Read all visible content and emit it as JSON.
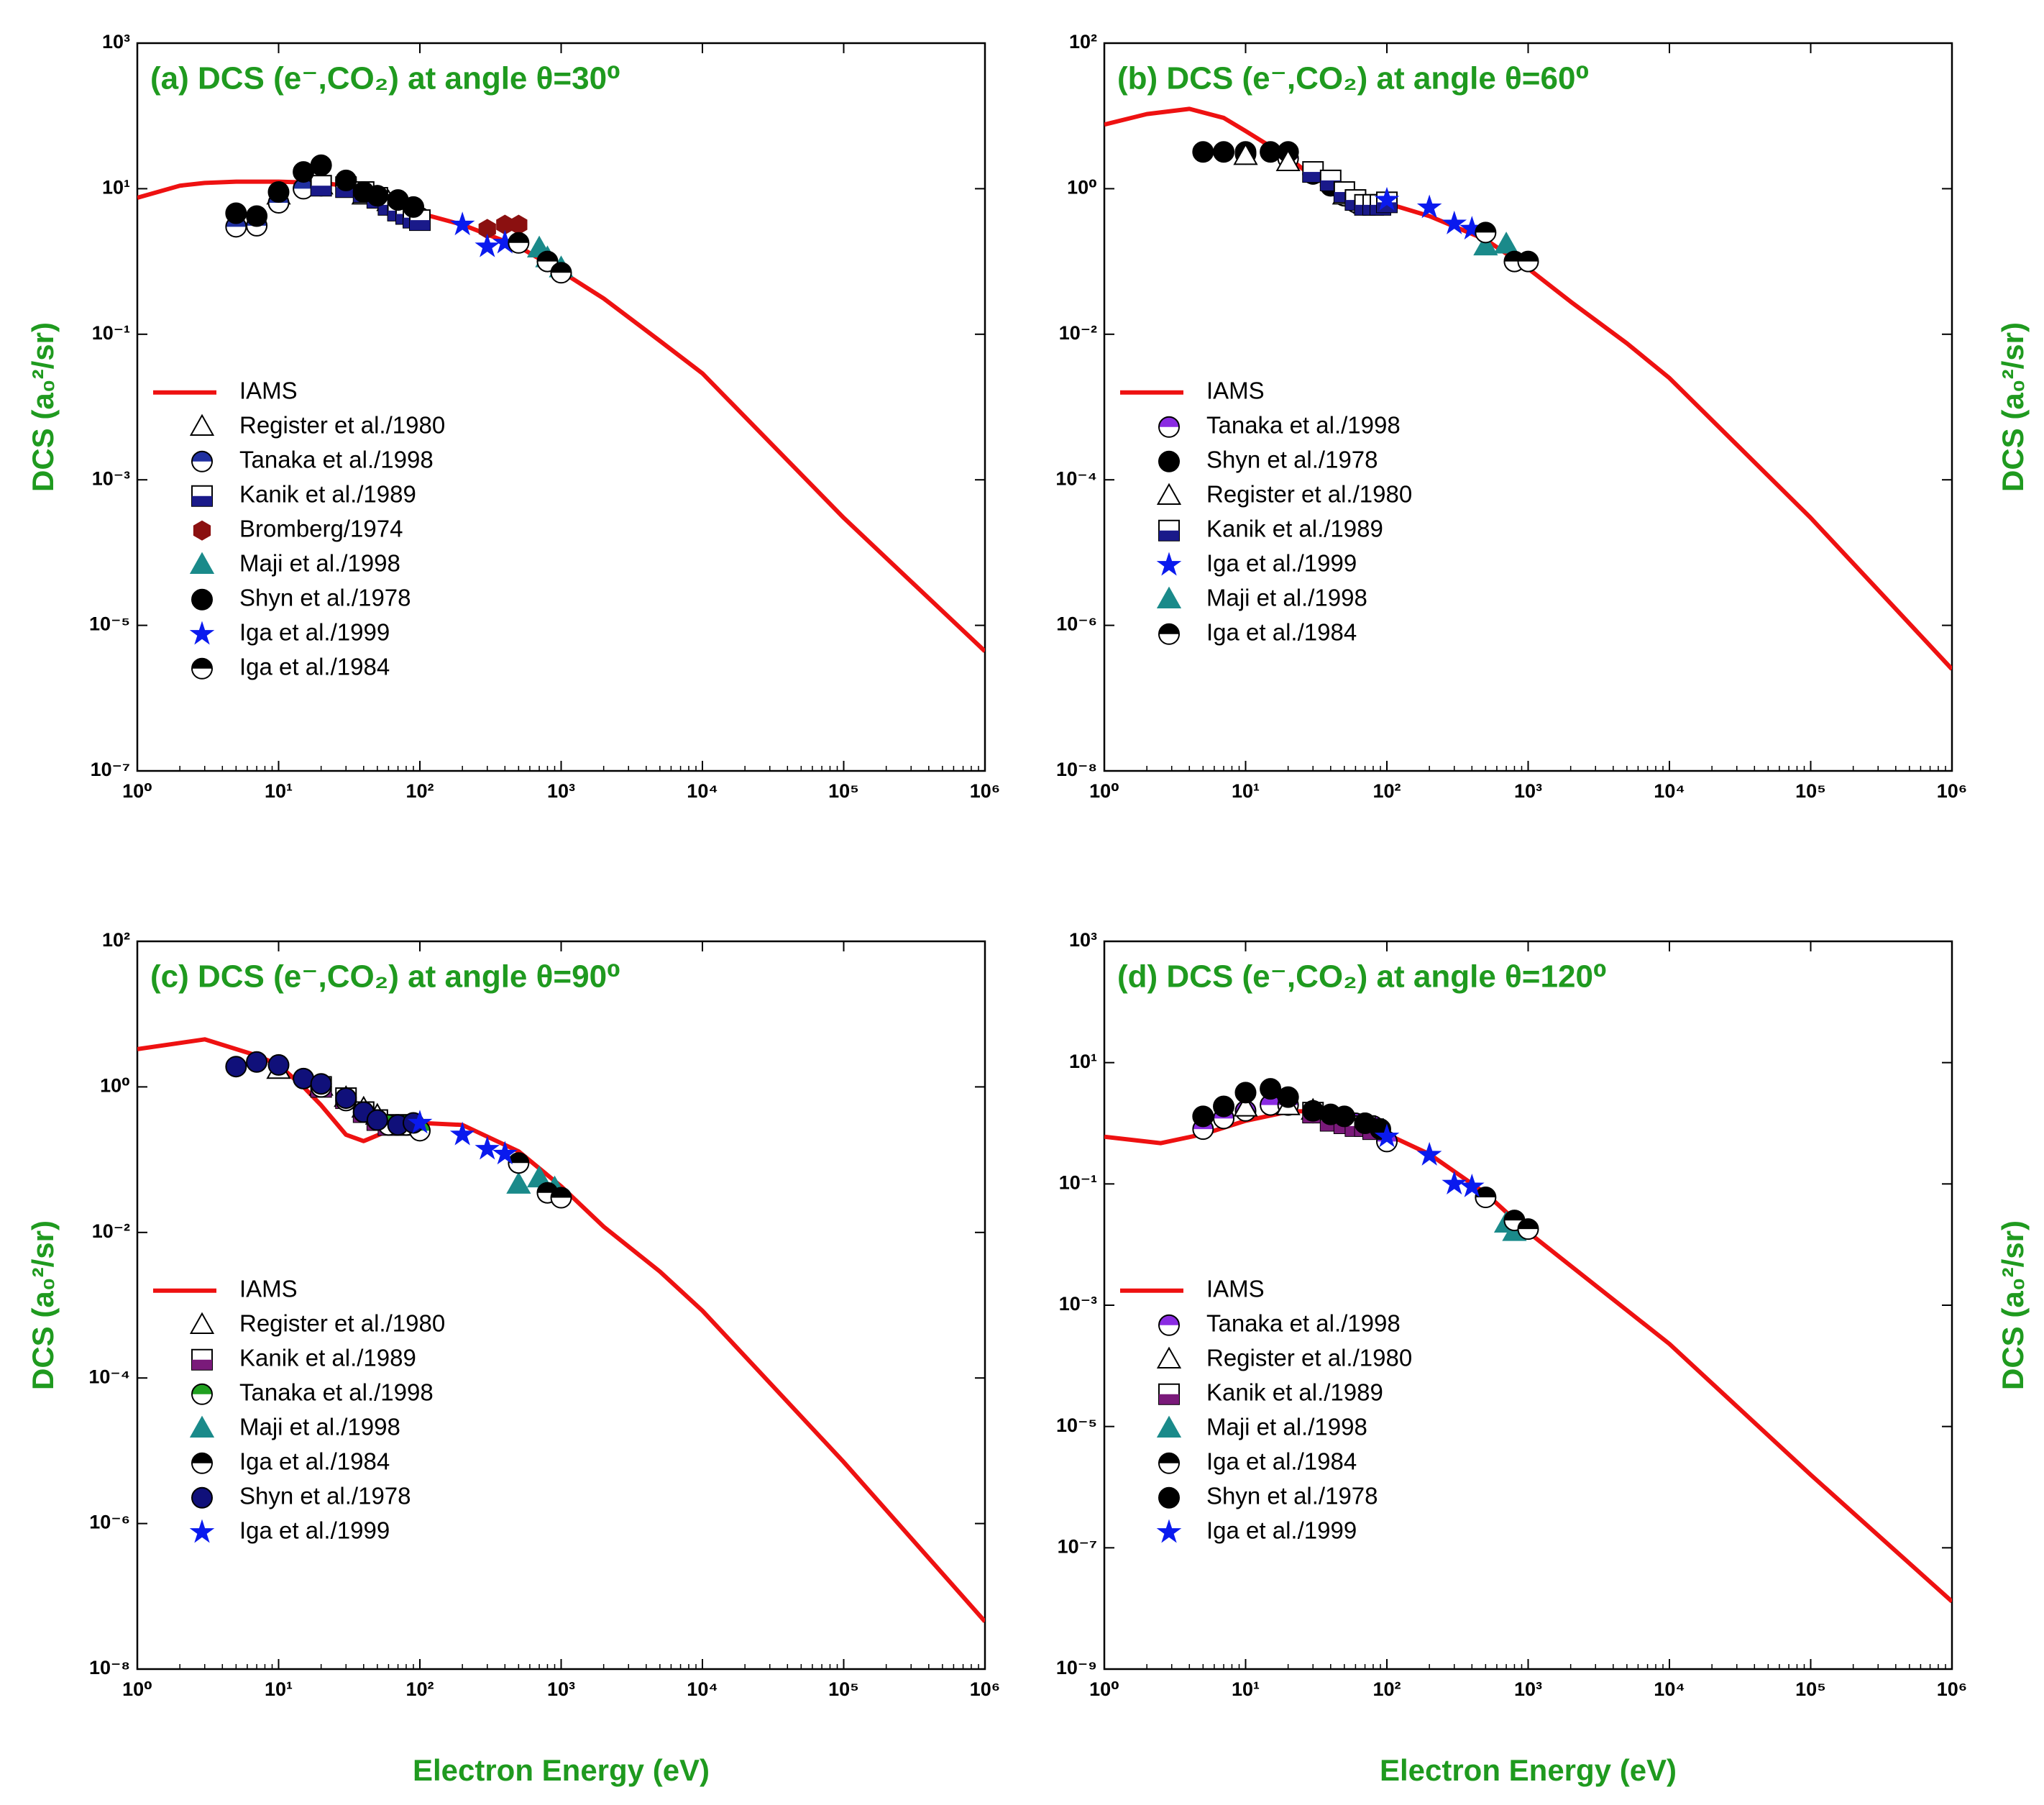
{
  "chart_data": [
    {
      "type": "line",
      "title": "(a) DCS (e⁻,CO₂) at angle θ=30⁰",
      "ylabel": "DCS (a₀²/sr)",
      "ylabel_side": "left",
      "log_x": true,
      "log_y": true,
      "legend": "center-left",
      "xlim": [
        1,
        1000000
      ],
      "ylim": [
        1e-07,
        1000
      ],
      "xticks": [
        {
          "value": 1,
          "label": "10⁰"
        },
        {
          "value": 10,
          "label": "10¹"
        },
        {
          "value": 100,
          "label": "10²"
        },
        {
          "value": 1000,
          "label": "10³"
        },
        {
          "value": 10000,
          "label": "10⁴"
        },
        {
          "value": 100000,
          "label": "10⁵"
        },
        {
          "value": 1000000,
          "label": "10⁶"
        }
      ],
      "yticks": [
        {
          "value": 1e-07,
          "label": "10⁻⁷"
        },
        {
          "value": 1e-05,
          "label": "10⁻⁵"
        },
        {
          "value": 0.001,
          "label": "10⁻³"
        },
        {
          "value": 0.1,
          "label": "10⁻¹"
        },
        {
          "value": 10,
          "label": "10¹"
        },
        {
          "value": 1000,
          "label": "10³"
        }
      ],
      "series": [
        {
          "name": "IAMS",
          "color": "#ee1111",
          "marker": "line",
          "x": [
            1,
            2,
            3,
            5,
            10,
            20,
            30,
            50,
            100,
            200,
            500,
            1000,
            2000,
            5000,
            10000,
            100000,
            1000000
          ],
          "values": [
            7.5,
            11,
            12,
            12.5,
            12.5,
            12,
            11,
            9,
            4.6,
            3.2,
            1.6,
            0.73,
            0.31,
            0.081,
            0.029,
            0.0003,
            4.4e-06
          ]
        },
        {
          "name": "Register et al./1980",
          "color": "#000000",
          "marker": "triangle-open",
          "x": [
            10,
            20,
            40,
            60
          ],
          "values": [
            8,
            11,
            8,
            6.5
          ]
        },
        {
          "name": "Tanaka et al./1998",
          "color": "#2030a0",
          "marker": "circle-half",
          "x": [
            5,
            7,
            10,
            15,
            20,
            30,
            40,
            50,
            60,
            70,
            80,
            90,
            100
          ],
          "values": [
            3,
            3.1,
            6.4,
            10,
            11,
            11,
            9,
            8,
            6,
            5.5,
            5,
            4.5,
            4
          ]
        },
        {
          "name": "Kanik et al./1989",
          "color": "#1a1a8a",
          "marker": "square-half",
          "x": [
            20,
            30,
            40,
            50,
            60,
            70,
            80,
            90,
            100
          ],
          "values": [
            11,
            10.5,
            9,
            7.5,
            6,
            5,
            4.5,
            4,
            3.7
          ]
        },
        {
          "name": "Bromberg/1974",
          "color": "#8b1010",
          "marker": "hexagon",
          "x": [
            300,
            400,
            500
          ],
          "values": [
            2.8,
            3.2,
            3.2
          ]
        },
        {
          "name": "Maji et al./1998",
          "color": "#1a8a8a",
          "marker": "triangle",
          "x": [
            700,
            800,
            1000
          ],
          "values": [
            1.5,
            1.1,
            0.8
          ]
        },
        {
          "name": "Shyn et al./1978",
          "color": "#000000",
          "marker": "circle",
          "x": [
            5,
            7,
            10,
            15,
            20,
            30,
            40,
            50,
            70,
            90
          ],
          "values": [
            4.6,
            4.2,
            9,
            17,
            21,
            13,
            9,
            8,
            7,
            5.6
          ]
        },
        {
          "name": "Iga et al./1999",
          "color": "#0a1aee",
          "marker": "star",
          "x": [
            200,
            300,
            400
          ],
          "values": [
            3.2,
            1.6,
            1.8
          ]
        },
        {
          "name": "Iga et al./1984",
          "color": "#000000",
          "marker": "circle-half",
          "x": [
            500,
            800,
            1000
          ],
          "values": [
            1.8,
            1.0,
            0.7
          ]
        }
      ]
    },
    {
      "type": "line",
      "title": "(b) DCS (e⁻,CO₂) at angle θ=60⁰",
      "ylabel": "DCS (a₀²/sr)",
      "ylabel_side": "right",
      "log_x": true,
      "log_y": true,
      "legend": "center-left",
      "xlim": [
        1,
        1000000
      ],
      "ylim": [
        1e-08,
        100
      ],
      "xticks": [
        {
          "value": 1,
          "label": "10⁰"
        },
        {
          "value": 10,
          "label": "10¹"
        },
        {
          "value": 100,
          "label": "10²"
        },
        {
          "value": 1000,
          "label": "10³"
        },
        {
          "value": 10000,
          "label": "10⁴"
        },
        {
          "value": 100000,
          "label": "10⁵"
        },
        {
          "value": 1000000,
          "label": "10⁶"
        }
      ],
      "yticks": [
        {
          "value": 1e-08,
          "label": "10⁻⁸"
        },
        {
          "value": 1e-06,
          "label": "10⁻⁶"
        },
        {
          "value": 0.0001,
          "label": "10⁻⁴"
        },
        {
          "value": 0.01,
          "label": "10⁻²"
        },
        {
          "value": 1,
          "label": "10⁰"
        },
        {
          "value": 100,
          "label": "10²"
        }
      ],
      "series": [
        {
          "name": "IAMS",
          "color": "#ee1111",
          "marker": "line",
          "x": [
            1,
            2,
            4,
            7,
            10,
            15,
            20,
            30,
            50,
            70,
            100,
            200,
            500,
            1000,
            2000,
            5000,
            10000,
            100000,
            1000000
          ],
          "values": [
            7.6,
            10.6,
            12.5,
            9.4,
            6.2,
            3.8,
            2.7,
            1.45,
            0.85,
            0.72,
            0.63,
            0.42,
            0.2,
            0.08,
            0.028,
            0.0075,
            0.0025,
            3e-05,
            2.5e-07
          ]
        },
        {
          "name": "Tanaka et al./1998",
          "color": "#8a2be2",
          "marker": "circle-half",
          "x": [
            10,
            20,
            30,
            40,
            50,
            60,
            70,
            80,
            100
          ],
          "values": [
            3,
            2.6,
            1.6,
            1.1,
            0.8,
            0.65,
            0.6,
            0.6,
            0.65
          ]
        },
        {
          "name": "Shyn et al./1978",
          "color": "#000000",
          "marker": "circle",
          "x": [
            5,
            7,
            10,
            15,
            20,
            30,
            40
          ],
          "values": [
            3.2,
            3.2,
            3.2,
            3.2,
            3.2,
            1.6,
            1.1
          ]
        },
        {
          "name": "Register et al./1980",
          "color": "#000000",
          "marker": "triangle-open",
          "x": [
            10,
            20,
            50,
            70
          ],
          "values": [
            2.8,
            2.3,
            0.8,
            0.6
          ]
        },
        {
          "name": "Kanik et al./1989",
          "color": "#1a1a8a",
          "marker": "square-half",
          "x": [
            30,
            40,
            50,
            60,
            70,
            80,
            90,
            100
          ],
          "values": [
            1.7,
            1.3,
            0.9,
            0.7,
            0.6,
            0.6,
            0.6,
            0.65
          ]
        },
        {
          "name": "Iga et al./1999",
          "color": "#0a1aee",
          "marker": "star",
          "x": [
            100,
            200,
            300,
            400
          ],
          "values": [
            0.7,
            0.55,
            0.33,
            0.28
          ]
        },
        {
          "name": "Maji et al./1998",
          "color": "#1a8a8a",
          "marker": "triangle",
          "x": [
            500,
            700
          ],
          "values": [
            0.16,
            0.17
          ]
        },
        {
          "name": "Iga et al./1984",
          "color": "#000000",
          "marker": "circle-half",
          "x": [
            500,
            800,
            1000
          ],
          "values": [
            0.25,
            0.1,
            0.1
          ]
        }
      ]
    },
    {
      "type": "line",
      "title": "(c) DCS (e⁻,CO₂) at angle θ=90⁰",
      "ylabel": "DCS (a₀²/sr)",
      "ylabel_side": "left",
      "xlabel": "Electron Energy (eV)",
      "log_x": true,
      "log_y": true,
      "legend": "center-left",
      "xlim": [
        1,
        1000000
      ],
      "ylim": [
        1e-08,
        100
      ],
      "xticks": [
        {
          "value": 1,
          "label": "10⁰"
        },
        {
          "value": 10,
          "label": "10¹"
        },
        {
          "value": 100,
          "label": "10²"
        },
        {
          "value": 1000,
          "label": "10³"
        },
        {
          "value": 10000,
          "label": "10⁴"
        },
        {
          "value": 100000,
          "label": "10⁵"
        },
        {
          "value": 1000000,
          "label": "10⁶"
        }
      ],
      "yticks": [
        {
          "value": 1e-08,
          "label": "10⁻⁸"
        },
        {
          "value": 1e-06,
          "label": "10⁻⁶"
        },
        {
          "value": 0.0001,
          "label": "10⁻⁴"
        },
        {
          "value": 0.01,
          "label": "10⁻²"
        },
        {
          "value": 1,
          "label": "10⁰"
        },
        {
          "value": 100,
          "label": "10²"
        }
      ],
      "series": [
        {
          "name": "IAMS",
          "color": "#ee1111",
          "marker": "line",
          "x": [
            1,
            3,
            7,
            10,
            15,
            20,
            30,
            40,
            60,
            100,
            200,
            500,
            1000,
            2000,
            5000,
            10000,
            100000,
            1000000
          ],
          "values": [
            3.3,
            4.5,
            2.7,
            2,
            1,
            0.56,
            0.22,
            0.18,
            0.25,
            0.32,
            0.3,
            0.13,
            0.043,
            0.012,
            0.0029,
            0.00084,
            7e-06,
            4.5e-08
          ]
        },
        {
          "name": "Register et al./1980",
          "color": "#000000",
          "marker": "triangle-open",
          "x": [
            10,
            20,
            30,
            40,
            50
          ],
          "values": [
            1.7,
            1,
            0.7,
            0.5,
            0.4
          ]
        },
        {
          "name": "Kanik et al./1989",
          "color": "#7a1a7a",
          "marker": "square-half",
          "x": [
            20,
            30,
            40,
            50,
            60,
            70,
            80
          ],
          "values": [
            1,
            0.7,
            0.45,
            0.35,
            0.3,
            0.3,
            0.3
          ]
        },
        {
          "name": "Tanaka et al./1998",
          "color": "#20a020",
          "marker": "circle-half",
          "x": [
            20,
            30,
            40,
            50,
            60,
            80,
            100
          ],
          "values": [
            1,
            0.65,
            0.45,
            0.35,
            0.3,
            0.3,
            0.25
          ]
        },
        {
          "name": "Maji et al./1998",
          "color": "#1a8a8a",
          "marker": "triangle",
          "x": [
            500,
            700,
            900
          ],
          "values": [
            0.045,
            0.055,
            0.04
          ]
        },
        {
          "name": "Iga et al./1984",
          "color": "#000000",
          "marker": "circle-half",
          "x": [
            500,
            800,
            1000
          ],
          "values": [
            0.09,
            0.035,
            0.03
          ]
        },
        {
          "name": "Shyn et al./1978",
          "color": "#10107a",
          "marker": "circle",
          "x": [
            5,
            7,
            10,
            15,
            20,
            30,
            40,
            50,
            70,
            90
          ],
          "values": [
            1.9,
            2.2,
            2,
            1.3,
            1.1,
            0.7,
            0.45,
            0.35,
            0.3,
            0.32
          ]
        },
        {
          "name": "Iga et al./1999",
          "color": "#0a1aee",
          "marker": "star",
          "x": [
            100,
            200,
            300,
            400
          ],
          "values": [
            0.32,
            0.22,
            0.14,
            0.12
          ]
        }
      ]
    },
    {
      "type": "line",
      "title": "(d) DCS (e⁻,CO₂) at angle θ=120⁰",
      "ylabel": "DCS (a₀²/sr)",
      "ylabel_side": "right",
      "xlabel": "Electron Energy (eV)",
      "log_x": true,
      "log_y": true,
      "legend": "center-left",
      "xlim": [
        1,
        1000000
      ],
      "ylim": [
        1e-09,
        1000
      ],
      "xticks": [
        {
          "value": 1,
          "label": "10⁰"
        },
        {
          "value": 10,
          "label": "10¹"
        },
        {
          "value": 100,
          "label": "10²"
        },
        {
          "value": 1000,
          "label": "10³"
        },
        {
          "value": 10000,
          "label": "10⁴"
        },
        {
          "value": 100000,
          "label": "10⁵"
        },
        {
          "value": 1000000,
          "label": "10⁶"
        }
      ],
      "yticks": [
        {
          "value": 1e-09,
          "label": "10⁻⁹"
        },
        {
          "value": 1e-07,
          "label": "10⁻⁷"
        },
        {
          "value": 1e-05,
          "label": "10⁻⁵"
        },
        {
          "value": 0.001,
          "label": "10⁻³"
        },
        {
          "value": 0.1,
          "label": "10⁻¹"
        },
        {
          "value": 10,
          "label": "10¹"
        },
        {
          "value": 1000,
          "label": "10³"
        }
      ],
      "series": [
        {
          "name": "IAMS",
          "color": "#ee1111",
          "marker": "line",
          "x": [
            1,
            2.5,
            5,
            10,
            20,
            30,
            50,
            100,
            200,
            500,
            1000,
            10000,
            100000,
            1000000
          ],
          "values": [
            0.6,
            0.47,
            0.66,
            1.1,
            1.55,
            1.6,
            1.2,
            0.66,
            0.31,
            0.07,
            0.016,
            0.00023,
            1.6e-06,
            1.3e-08
          ]
        },
        {
          "name": "Tanaka et al./1998",
          "color": "#8a2be2",
          "marker": "circle-half",
          "x": [
            5,
            7,
            10,
            15,
            20,
            30,
            40,
            60,
            70,
            80,
            100
          ],
          "values": [
            0.8,
            1.2,
            1.6,
            2,
            2,
            1.5,
            1.3,
            1,
            1,
            0.9,
            0.5
          ]
        },
        {
          "name": "Register et al./1980",
          "color": "#000000",
          "marker": "triangle-open",
          "x": [
            10,
            20,
            30
          ],
          "values": [
            1.8,
            1.9,
            1.6
          ]
        },
        {
          "name": "Kanik et al./1989",
          "color": "#7a1a7a",
          "marker": "square-half",
          "x": [
            30,
            40,
            50,
            60,
            70,
            80
          ],
          "values": [
            1.5,
            1.1,
            1,
            0.9,
            0.9,
            0.8
          ]
        },
        {
          "name": "Maji et al./1998",
          "color": "#1a8a8a",
          "marker": "triangle",
          "x": [
            700,
            800
          ],
          "values": [
            0.022,
            0.016
          ]
        },
        {
          "name": "Iga et al./1984",
          "color": "#000000",
          "marker": "circle-half",
          "x": [
            500,
            800,
            1000
          ],
          "values": [
            0.06,
            0.025,
            0.018
          ]
        },
        {
          "name": "Shyn et al./1978",
          "color": "#000000",
          "marker": "circle",
          "x": [
            5,
            7,
            10,
            15,
            20,
            30,
            40,
            50,
            70,
            90
          ],
          "values": [
            1.3,
            1.9,
            3.2,
            3.7,
            2.7,
            1.6,
            1.4,
            1.3,
            1,
            0.8
          ]
        },
        {
          "name": "Iga et al./1999",
          "color": "#0a1aee",
          "marker": "star",
          "x": [
            100,
            200,
            300,
            400
          ],
          "values": [
            0.6,
            0.3,
            0.1,
            0.09
          ]
        }
      ]
    }
  ]
}
